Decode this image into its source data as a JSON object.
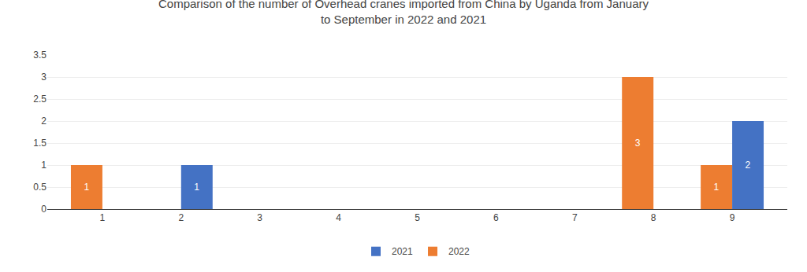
{
  "chart_data": {
    "type": "bar",
    "title": "Comparison of the number of Overhead cranes imported from China by Uganda from January\nto September in 2022 and 2021",
    "x": [
      1,
      2,
      3,
      4,
      5,
      6,
      7,
      8,
      9
    ],
    "series": [
      {
        "name": "2022",
        "color": "#ED7D31",
        "values": [
          1,
          0,
          0,
          0,
          0,
          0,
          0,
          3,
          1
        ]
      },
      {
        "name": "2021",
        "color": "#4472C4",
        "values": [
          0,
          1,
          0,
          0,
          0,
          0,
          0,
          0,
          2
        ]
      }
    ],
    "xlim": [
      0.3,
      9.7
    ],
    "xticks": [
      1,
      2,
      3,
      4,
      5,
      6,
      7,
      8,
      9
    ],
    "ylim": [
      0,
      3.5
    ],
    "yticks": [
      0,
      0.5,
      1,
      1.5,
      2,
      2.5,
      3,
      3.5
    ],
    "grid": true,
    "legend": "bottom",
    "data_labels": true
  }
}
